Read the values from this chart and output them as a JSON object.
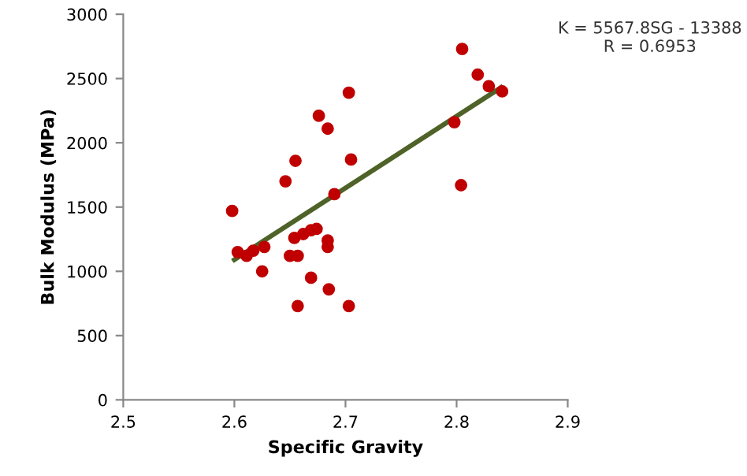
{
  "chart_data": {
    "type": "scatter",
    "xlabel": "Specific Gravity",
    "ylabel": "Bulk Modulus (MPa)",
    "xlim": [
      2.5,
      2.9
    ],
    "xticks": [
      2.5,
      2.6,
      2.7,
      2.8,
      2.9
    ],
    "ylim": [
      0,
      3000
    ],
    "yticks": [
      0,
      500,
      1000,
      1500,
      2000,
      2500,
      3000
    ],
    "grid": false,
    "annotations": [
      "K = 5567.8SG - 13388\nR = 0.6953"
    ],
    "series": [
      {
        "marker": "circle",
        "color": "#c00000",
        "x": [
          2.598,
          2.603,
          2.611,
          2.617,
          2.627,
          2.625,
          2.646,
          2.655,
          2.65,
          2.657,
          2.654,
          2.662,
          2.669,
          2.674,
          2.657,
          2.669,
          2.676,
          2.684,
          2.684,
          2.684,
          2.685,
          2.69,
          2.703,
          2.705,
          2.703,
          2.805,
          2.819,
          2.829,
          2.841,
          2.798,
          2.804
        ],
        "values": [
          1470,
          1150,
          1120,
          1160,
          1190,
          1000,
          1700,
          1860,
          1120,
          1120,
          1260,
          1290,
          1320,
          1330,
          730,
          950,
          2210,
          2110,
          1240,
          1190,
          860,
          1600,
          2390,
          1870,
          730,
          2730,
          2530,
          2440,
          2400,
          2160,
          1670
        ]
      },
      {
        "type": "line",
        "color": "#4f6228",
        "x": [
          2.6,
          2.84
        ],
        "values": [
          1090,
          2430
        ]
      }
    ]
  }
}
